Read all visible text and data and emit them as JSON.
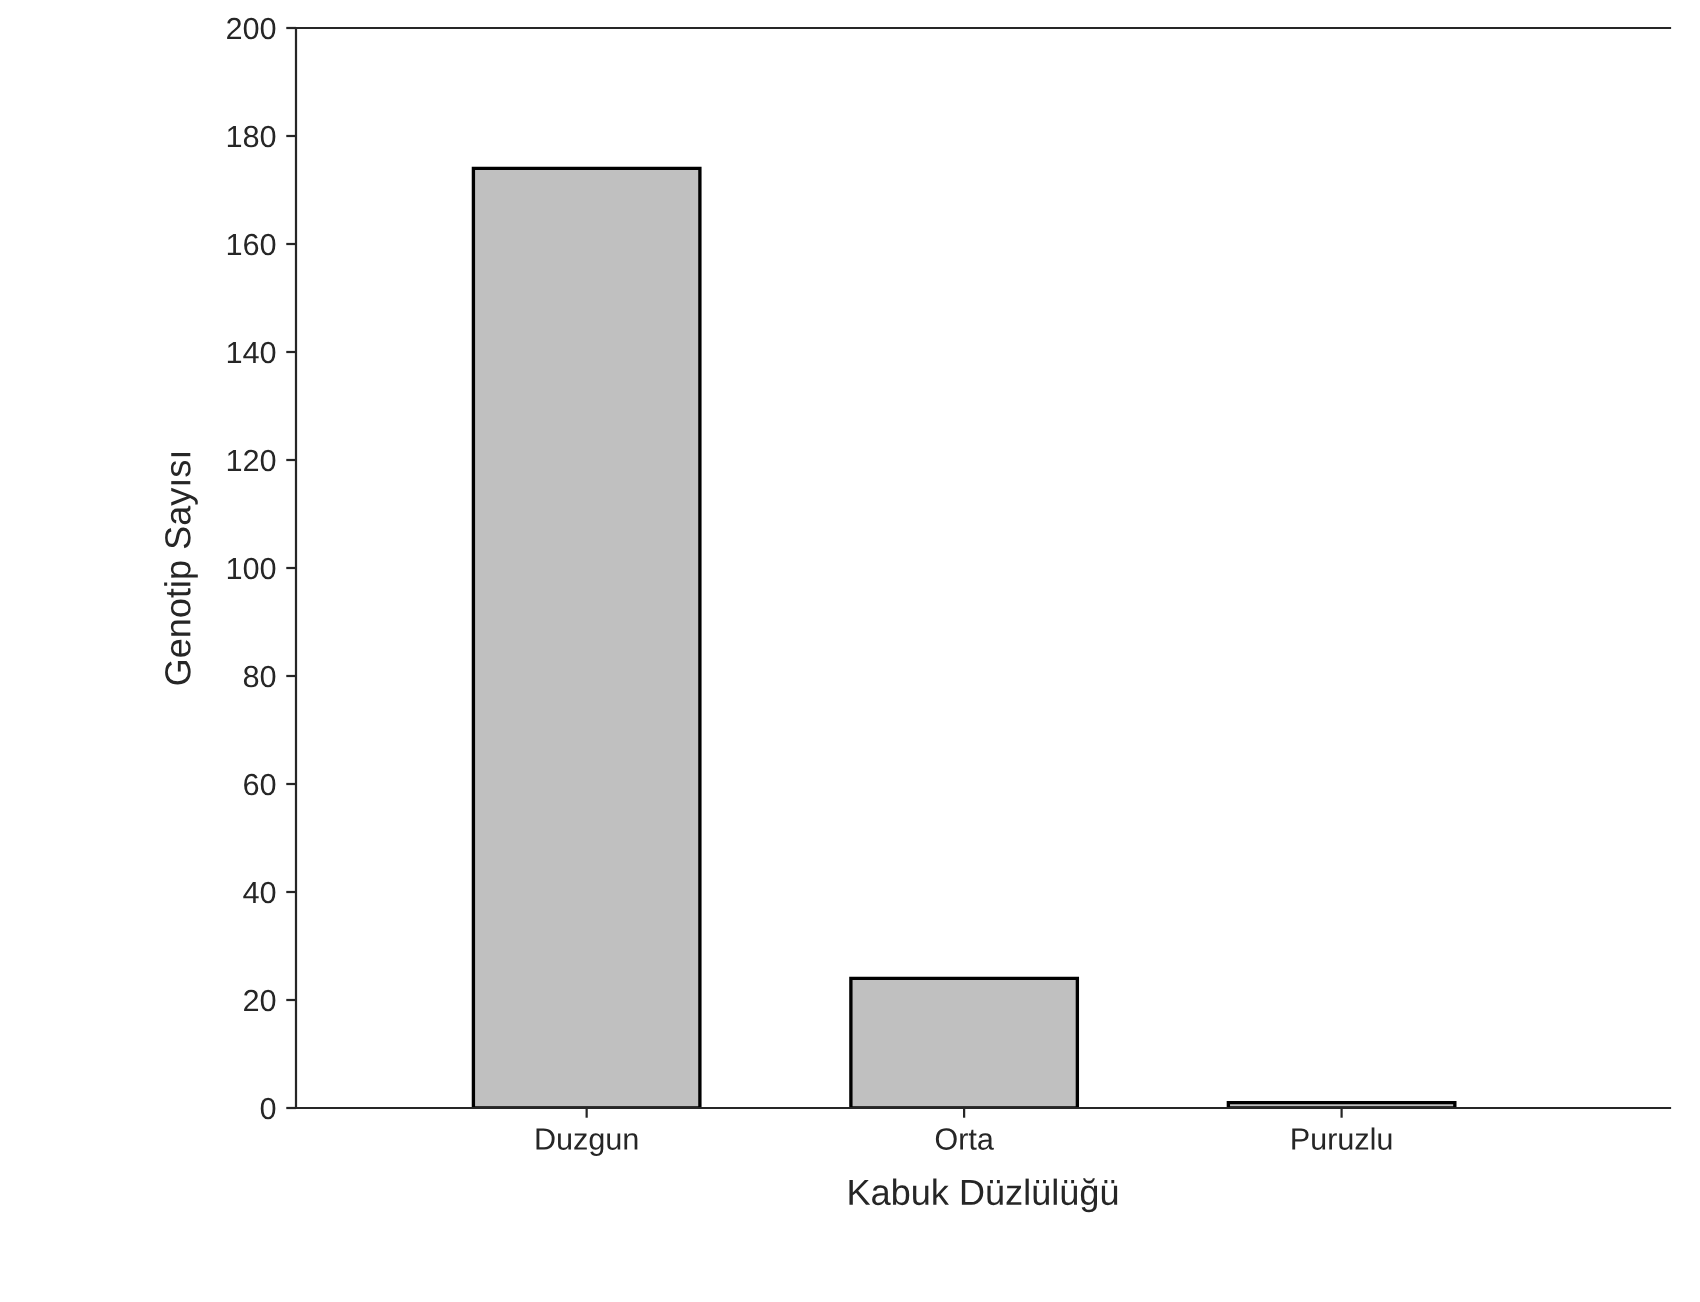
{
  "chart_data": {
    "type": "bar",
    "xlabel": "Kabuk Düzlülüğü",
    "ylabel": "Genotip Sayısı",
    "categories": [
      "Duzgun",
      "Orta",
      "Puruzlu"
    ],
    "values": [
      174,
      24,
      1
    ],
    "color": "#c0c0c0",
    "ylim": [
      0,
      200
    ],
    "yticks": [
      0,
      20,
      40,
      60,
      80,
      100,
      120,
      140,
      160,
      180,
      200
    ],
    "grid": false,
    "legend": false
  }
}
